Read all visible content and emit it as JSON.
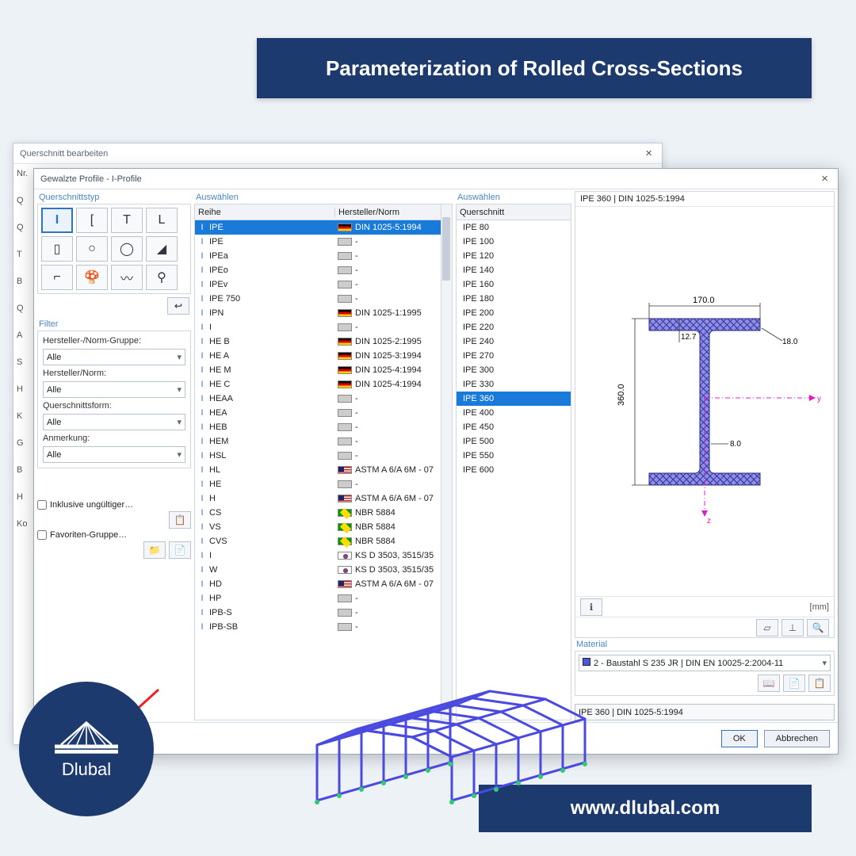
{
  "banner": {
    "title": "Parameterization of Rolled Cross-Sections",
    "url": "www.dlubal.com"
  },
  "logo": "Dlubal",
  "back_window": {
    "title": "Querschnitt bearbeiten",
    "labels": [
      "Nr.",
      "Q",
      "Q",
      "T",
      "B",
      "Q",
      "A",
      "S",
      "H",
      "K",
      "G",
      "B",
      "H",
      "Ko"
    ]
  },
  "dialog": {
    "title": "Gewalzte Profile - I-Profile",
    "group_type": "Querschnittstyp",
    "group_sel1": "Auswählen",
    "group_sel2": "Auswählen",
    "hdr_reihe": "Reihe",
    "hdr_norm": "Hersteller/Norm",
    "hdr_qs": "Querschnitt",
    "types": [
      "I",
      "[",
      "T",
      "L",
      "▯",
      "○",
      "◯",
      "◢",
      "⌐",
      "🍄",
      "〰",
      "⚲"
    ],
    "filter": {
      "title": "Filter",
      "l1": "Hersteller-/Norm-Gruppe:",
      "l2": "Hersteller/Norm:",
      "l3": "Querschnittsform:",
      "l4": "Anmerkung:",
      "alle": "Alle",
      "chk1": "Inklusive ungültiger…",
      "chk2": "Favoriten-Gruppe…"
    },
    "reihe": [
      {
        "n": "IPE",
        "f": "de",
        "norm": "DIN 1025-5:1994",
        "sel": true
      },
      {
        "n": "IPE",
        "f": "",
        "norm": "-"
      },
      {
        "n": "IPEa",
        "f": "",
        "norm": "-"
      },
      {
        "n": "IPEo",
        "f": "",
        "norm": "-"
      },
      {
        "n": "IPEv",
        "f": "",
        "norm": "-"
      },
      {
        "n": "IPE 750",
        "f": "",
        "norm": "-"
      },
      {
        "n": "IPN",
        "f": "de",
        "norm": "DIN 1025-1:1995"
      },
      {
        "n": "I",
        "f": "",
        "norm": "-"
      },
      {
        "n": "HE B",
        "f": "de",
        "norm": "DIN 1025-2:1995"
      },
      {
        "n": "HE A",
        "f": "de",
        "norm": "DIN 1025-3:1994"
      },
      {
        "n": "HE M",
        "f": "de",
        "norm": "DIN 1025-4:1994"
      },
      {
        "n": "HE C",
        "f": "de",
        "norm": "DIN 1025-4:1994"
      },
      {
        "n": "HEAA",
        "f": "",
        "norm": "-"
      },
      {
        "n": "HEA",
        "f": "",
        "norm": "-"
      },
      {
        "n": "HEB",
        "f": "",
        "norm": "-"
      },
      {
        "n": "HEM",
        "f": "",
        "norm": "-"
      },
      {
        "n": "HSL",
        "f": "",
        "norm": "-"
      },
      {
        "n": "HL",
        "f": "us",
        "norm": "ASTM A 6/A 6M - 07"
      },
      {
        "n": "HE",
        "f": "",
        "norm": "-"
      },
      {
        "n": "H",
        "f": "us",
        "norm": "ASTM A 6/A 6M - 07"
      },
      {
        "n": "CS",
        "f": "br",
        "norm": "NBR 5884"
      },
      {
        "n": "VS",
        "f": "br",
        "norm": "NBR 5884"
      },
      {
        "n": "CVS",
        "f": "br",
        "norm": "NBR 5884"
      },
      {
        "n": "I",
        "f": "kr",
        "norm": "KS D 3503, 3515/35"
      },
      {
        "n": "W",
        "f": "kr",
        "norm": "KS D 3503, 3515/35"
      },
      {
        "n": "HD",
        "f": "us",
        "norm": "ASTM A 6/A 6M - 07"
      },
      {
        "n": "HP",
        "f": "",
        "norm": "-"
      },
      {
        "n": "IPB-S",
        "f": "",
        "norm": "-"
      },
      {
        "n": "IPB-SB",
        "f": "",
        "norm": "-"
      }
    ],
    "qs": [
      "IPE 80",
      "IPE 100",
      "IPE 120",
      "IPE 140",
      "IPE 160",
      "IPE 180",
      "IPE 200",
      "IPE 220",
      "IPE 240",
      "IPE 270",
      "IPE 300",
      "IPE 330",
      "IPE 360",
      "IPE 400",
      "IPE 450",
      "IPE 500",
      "IPE 550",
      "IPE 600"
    ],
    "qs_selected": "IPE 360",
    "preview": {
      "title": "IPE 360 | DIN 1025-5:1994",
      "width": "170.0",
      "height": "360.0",
      "tw": "12.7",
      "tf": "18.0",
      "r": "8.0",
      "unit": "[mm]"
    },
    "material": {
      "title": "Material",
      "value": "2 - Baustahl S 235 JR | DIN EN 10025-2:2004-11"
    },
    "result": "IPE 360 | DIN 1025-5:1994",
    "ok": "OK",
    "cancel": "Abbrechen"
  }
}
